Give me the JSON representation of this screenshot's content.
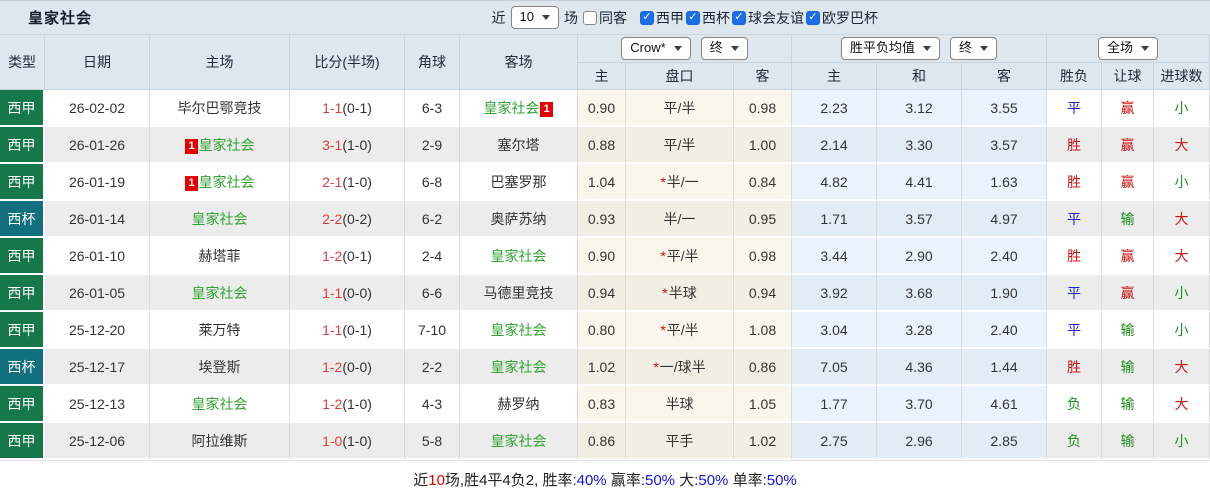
{
  "toolbar": {
    "title": "皇家社会",
    "recent_label": "近",
    "recent_value": "10",
    "games_label": "场",
    "same_opponent": {
      "label": "同客",
      "checked": false
    },
    "filters": [
      {
        "label": "西甲",
        "checked": true
      },
      {
        "label": "西杯",
        "checked": true
      },
      {
        "label": "球会友谊",
        "checked": true
      },
      {
        "label": "欧罗巴杯",
        "checked": true
      }
    ]
  },
  "selects": {
    "bookmaker": "Crow*",
    "handicap_status": "终",
    "odds_mode": "胜平负均值",
    "odds_status": "终",
    "scope": "全场"
  },
  "table": {
    "left_headers": [
      "类型",
      "日期",
      "主场",
      "比分(半场)",
      "角球",
      "客场"
    ],
    "sub_headers": [
      "主",
      "盘口",
      "客",
      "主",
      "和",
      "客",
      "胜负",
      "让球",
      "进球数"
    ],
    "rows": [
      {
        "type": "西甲",
        "type_style": "liga",
        "date": "26-02-02",
        "home": "毕尔巴鄂竞技",
        "home_focus": false,
        "home_badge": "",
        "score": "1-1",
        "half": "0-1",
        "corner": "6-3",
        "away": "皇家社会",
        "away_focus": true,
        "away_badge": "1",
        "handicap_home": "0.90",
        "handicap": "平/半",
        "handicap_star": false,
        "handicap_away": "0.98",
        "avg_home": "2.23",
        "avg_draw": "3.12",
        "avg_away": "3.55",
        "result": "平",
        "result_color": "blue",
        "covered": "赢",
        "covered_color": "red",
        "goals": "小",
        "goals_color": "green"
      },
      {
        "type": "西甲",
        "type_style": "liga",
        "date": "26-01-26",
        "home": "皇家社会",
        "home_focus": true,
        "home_badge": "1",
        "score": "3-1",
        "half": "1-0",
        "corner": "2-9",
        "away": "塞尔塔",
        "away_focus": false,
        "away_badge": "",
        "handicap_home": "0.88",
        "handicap": "平/半",
        "handicap_star": false,
        "handicap_away": "1.00",
        "avg_home": "2.14",
        "avg_draw": "3.30",
        "avg_away": "3.57",
        "result": "胜",
        "result_color": "red",
        "covered": "赢",
        "covered_color": "red",
        "goals": "大",
        "goals_color": "red"
      },
      {
        "type": "西甲",
        "type_style": "liga",
        "date": "26-01-19",
        "home": "皇家社会",
        "home_focus": true,
        "home_badge": "1",
        "score": "2-1",
        "half": "1-0",
        "corner": "6-8",
        "away": "巴塞罗那",
        "away_focus": false,
        "away_badge": "",
        "handicap_home": "1.04",
        "handicap": "半/一",
        "handicap_star": true,
        "handicap_away": "0.84",
        "avg_home": "4.82",
        "avg_draw": "4.41",
        "avg_away": "1.63",
        "result": "胜",
        "result_color": "red",
        "covered": "赢",
        "covered_color": "red",
        "goals": "小",
        "goals_color": "green"
      },
      {
        "type": "西杯",
        "type_style": "cup",
        "date": "26-01-14",
        "home": "皇家社会",
        "home_focus": true,
        "home_badge": "",
        "score": "2-2",
        "half": "0-2",
        "corner": "6-2",
        "away": "奥萨苏纳",
        "away_focus": false,
        "away_badge": "",
        "handicap_home": "0.93",
        "handicap": "半/一",
        "handicap_star": false,
        "handicap_away": "0.95",
        "avg_home": "1.71",
        "avg_draw": "3.57",
        "avg_away": "4.97",
        "result": "平",
        "result_color": "blue",
        "covered": "输",
        "covered_color": "green",
        "goals": "大",
        "goals_color": "red"
      },
      {
        "type": "西甲",
        "type_style": "liga",
        "date": "26-01-10",
        "home": "赫塔菲",
        "home_focus": false,
        "home_badge": "",
        "score": "1-2",
        "half": "0-1",
        "corner": "2-4",
        "away": "皇家社会",
        "away_focus": true,
        "away_badge": "",
        "handicap_home": "0.90",
        "handicap": "平/半",
        "handicap_star": true,
        "handicap_away": "0.98",
        "avg_home": "3.44",
        "avg_draw": "2.90",
        "avg_away": "2.40",
        "result": "胜",
        "result_color": "red",
        "covered": "赢",
        "covered_color": "red",
        "goals": "大",
        "goals_color": "red"
      },
      {
        "type": "西甲",
        "type_style": "liga",
        "date": "26-01-05",
        "home": "皇家社会",
        "home_focus": true,
        "home_badge": "",
        "score": "1-1",
        "half": "0-0",
        "corner": "6-6",
        "away": "马德里竞技",
        "away_focus": false,
        "away_badge": "",
        "handicap_home": "0.94",
        "handicap": "半球",
        "handicap_star": true,
        "handicap_away": "0.94",
        "avg_home": "3.92",
        "avg_draw": "3.68",
        "avg_away": "1.90",
        "result": "平",
        "result_color": "blue",
        "covered": "赢",
        "covered_color": "red",
        "goals": "小",
        "goals_color": "green"
      },
      {
        "type": "西甲",
        "type_style": "liga",
        "date": "25-12-20",
        "home": "莱万特",
        "home_focus": false,
        "home_badge": "",
        "score": "1-1",
        "half": "0-1",
        "corner": "7-10",
        "away": "皇家社会",
        "away_focus": true,
        "away_badge": "",
        "handicap_home": "0.80",
        "handicap": "平/半",
        "handicap_star": true,
        "handicap_away": "1.08",
        "avg_home": "3.04",
        "avg_draw": "3.28",
        "avg_away": "2.40",
        "result": "平",
        "result_color": "blue",
        "covered": "输",
        "covered_color": "green",
        "goals": "小",
        "goals_color": "green"
      },
      {
        "type": "西杯",
        "type_style": "cup",
        "date": "25-12-17",
        "home": "埃登斯",
        "home_focus": false,
        "home_badge": "",
        "score": "1-2",
        "half": "0-0",
        "corner": "2-2",
        "away": "皇家社会",
        "away_focus": true,
        "away_badge": "",
        "handicap_home": "1.02",
        "handicap": "一/球半",
        "handicap_star": true,
        "handicap_away": "0.86",
        "avg_home": "7.05",
        "avg_draw": "4.36",
        "avg_away": "1.44",
        "result": "胜",
        "result_color": "red",
        "covered": "输",
        "covered_color": "green",
        "goals": "大",
        "goals_color": "red"
      },
      {
        "type": "西甲",
        "type_style": "liga",
        "date": "25-12-13",
        "home": "皇家社会",
        "home_focus": true,
        "home_badge": "",
        "score": "1-2",
        "half": "1-0",
        "corner": "4-3",
        "away": "赫罗纳",
        "away_focus": false,
        "away_badge": "",
        "handicap_home": "0.83",
        "handicap": "半球",
        "handicap_star": false,
        "handicap_away": "1.05",
        "avg_home": "1.77",
        "avg_draw": "3.70",
        "avg_away": "4.61",
        "result": "负",
        "result_color": "green",
        "covered": "输",
        "covered_color": "green",
        "goals": "大",
        "goals_color": "red"
      },
      {
        "type": "西甲",
        "type_style": "liga",
        "date": "25-12-06",
        "home": "阿拉维斯",
        "home_focus": false,
        "home_badge": "",
        "score": "1-0",
        "half": "1-0",
        "corner": "5-8",
        "away": "皇家社会",
        "away_focus": true,
        "away_badge": "",
        "handicap_home": "0.86",
        "handicap": "平手",
        "handicap_star": false,
        "handicap_away": "1.02",
        "avg_home": "2.75",
        "avg_draw": "2.96",
        "avg_away": "2.85",
        "result": "负",
        "result_color": "green",
        "covered": "输",
        "covered_color": "green",
        "goals": "小",
        "goals_color": "green"
      }
    ]
  },
  "footer": {
    "segments": [
      {
        "text": "近",
        "color": "dark"
      },
      {
        "text": "10",
        "color": "red"
      },
      {
        "text": "场,胜4平4负2, 胜率:",
        "color": "dark"
      },
      {
        "text": "40%",
        "color": "blue"
      },
      {
        "text": " 赢率:",
        "color": "dark"
      },
      {
        "text": "50%",
        "color": "blue"
      },
      {
        "text": " 大:",
        "color": "dark"
      },
      {
        "text": "50%",
        "color": "blue"
      },
      {
        "text": " 单率:",
        "color": "dark"
      },
      {
        "text": "50%",
        "color": "blue"
      }
    ]
  },
  "colors": {
    "header_bg": "#dee6ee",
    "liga_green": "#15774a",
    "cup_teal": "#126f7e",
    "focus_team_green": "#2fa32f",
    "result_red": "#cc1414",
    "result_blue": "#1f1fd4",
    "result_green": "#1d8f1d",
    "score_red": "#e03e3e",
    "badge_red": "#e60000",
    "checkbox_blue": "#1b6fe3",
    "handicap_col_bg": "#fbf6ec",
    "odds_col_bg": "#eaf3fb",
    "alt_row_bg": "#ececec"
  }
}
